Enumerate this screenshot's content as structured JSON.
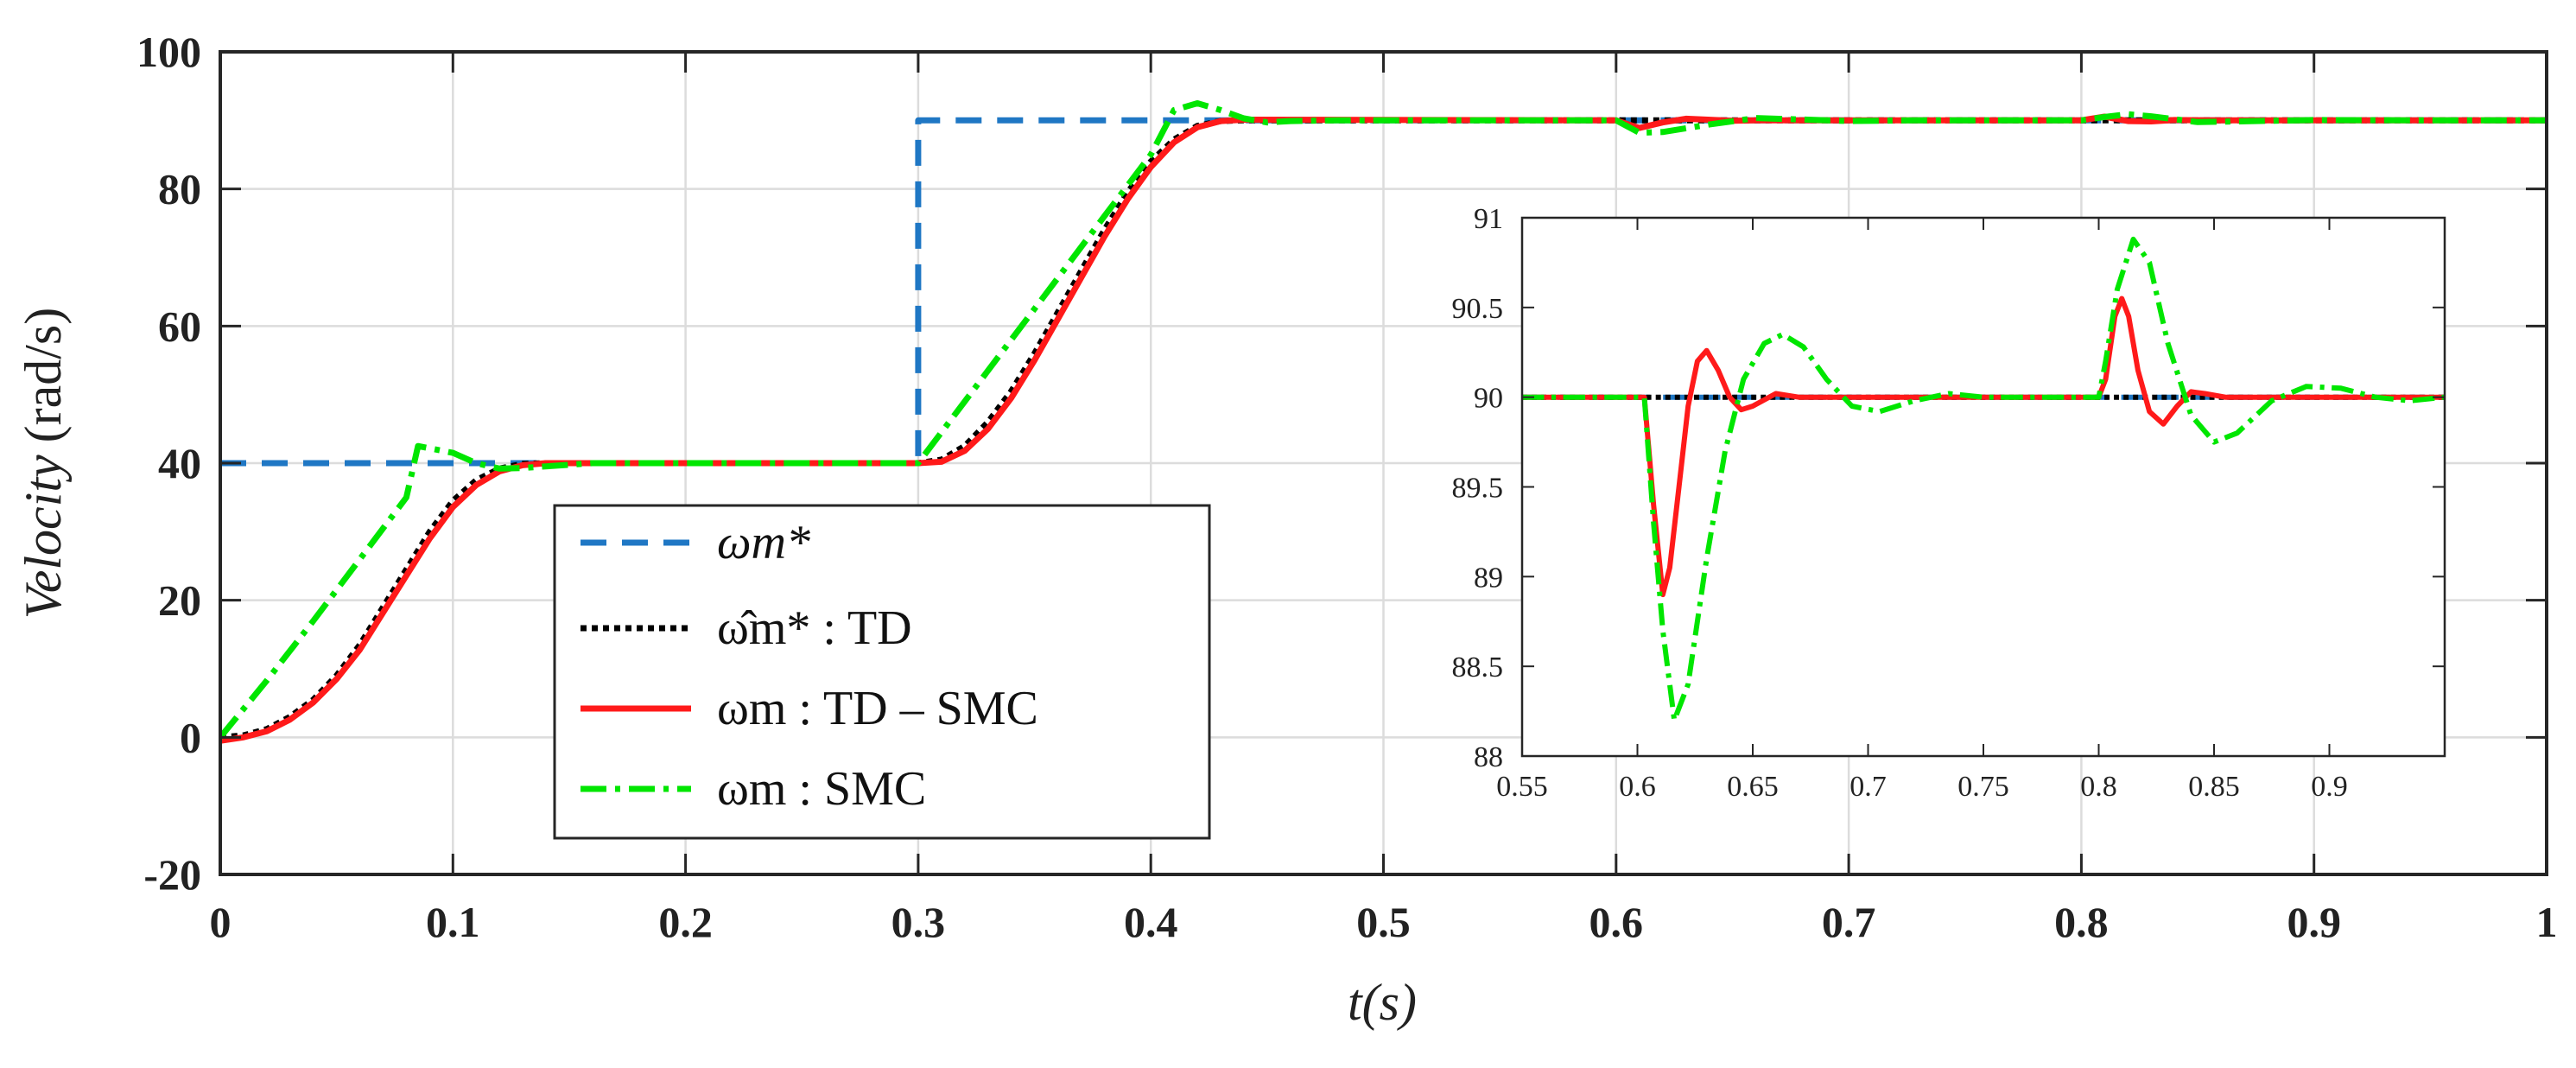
{
  "chart_data": [
    {
      "id": "main",
      "type": "line",
      "title": "",
      "xlabel": "t(s)",
      "ylabel": "Velocity (rad/s)",
      "ylabel_italic_part": "Velocity",
      "ylabel_unit_part": "(rad/s)",
      "xlim": [
        0,
        1
      ],
      "ylim": [
        -20,
        100
      ],
      "grid": true,
      "x_ticks": [
        0,
        0.1,
        0.2,
        0.3,
        0.4,
        0.5,
        0.6,
        0.7,
        0.8,
        0.9,
        1
      ],
      "x_tick_labels": [
        "0",
        "0.1",
        "0.2",
        "0.3",
        "0.4",
        "0.5",
        "0.6",
        "0.7",
        "0.8",
        "0.9",
        "1"
      ],
      "y_ticks": [
        -20,
        0,
        20,
        40,
        60,
        80,
        100
      ],
      "y_tick_labels": [
        "-20",
        "0",
        "20",
        "40",
        "60",
        "80",
        "100"
      ],
      "legend_position": "lower-center-left",
      "series": [
        {
          "name": "ω*m",
          "legend_text": "ωm*",
          "style": "dashed",
          "color": "#1f77c4",
          "points": [
            [
              0,
              40
            ],
            [
              0.3,
              40
            ],
            [
              0.3,
              90
            ],
            [
              1,
              90
            ]
          ]
        },
        {
          "name": "ω̂*m : TD",
          "legend_text": "ω̂m* : TD",
          "style": "dotted",
          "color": "#000000",
          "points": [
            [
              0,
              0
            ],
            [
              0.01,
              0.3
            ],
            [
              0.02,
              1.2
            ],
            [
              0.03,
              3
            ],
            [
              0.04,
              5.5
            ],
            [
              0.05,
              9
            ],
            [
              0.06,
              13.5
            ],
            [
              0.07,
              19
            ],
            [
              0.08,
              24.5
            ],
            [
              0.09,
              30
            ],
            [
              0.1,
              34.5
            ],
            [
              0.11,
              37.5
            ],
            [
              0.12,
              39.2
            ],
            [
              0.13,
              39.9
            ],
            [
              0.14,
              40
            ],
            [
              0.3,
              40
            ],
            [
              0.31,
              40.5
            ],
            [
              0.32,
              42.5
            ],
            [
              0.33,
              46
            ],
            [
              0.34,
              50.5
            ],
            [
              0.35,
              56
            ],
            [
              0.36,
              62
            ],
            [
              0.37,
              68
            ],
            [
              0.38,
              74
            ],
            [
              0.39,
              79.5
            ],
            [
              0.4,
              84
            ],
            [
              0.41,
              87.2
            ],
            [
              0.42,
              89.2
            ],
            [
              0.43,
              89.9
            ],
            [
              0.44,
              90
            ],
            [
              1,
              90
            ]
          ]
        },
        {
          "name": "ωm : TD - SMC",
          "legend_text": "ωm : TD – SMC",
          "style": "solid",
          "color": "#ff1a1a",
          "points": [
            [
              0,
              -0.5
            ],
            [
              0.01,
              0
            ],
            [
              0.02,
              0.9
            ],
            [
              0.03,
              2.6
            ],
            [
              0.04,
              5.1
            ],
            [
              0.05,
              8.5
            ],
            [
              0.06,
              12.8
            ],
            [
              0.07,
              18.2
            ],
            [
              0.08,
              23.6
            ],
            [
              0.09,
              29
            ],
            [
              0.1,
              33.6
            ],
            [
              0.11,
              36.8
            ],
            [
              0.12,
              38.8
            ],
            [
              0.13,
              39.7
            ],
            [
              0.14,
              40
            ],
            [
              0.3,
              40
            ],
            [
              0.31,
              40.2
            ],
            [
              0.32,
              41.8
            ],
            [
              0.33,
              45
            ],
            [
              0.34,
              49.5
            ],
            [
              0.35,
              55
            ],
            [
              0.36,
              61
            ],
            [
              0.37,
              67
            ],
            [
              0.38,
              73
            ],
            [
              0.39,
              78.5
            ],
            [
              0.4,
              83.2
            ],
            [
              0.41,
              86.8
            ],
            [
              0.42,
              89
            ],
            [
              0.43,
              89.9
            ],
            [
              0.44,
              90.1
            ],
            [
              0.6,
              90
            ],
            [
              0.61,
              88.9
            ],
            [
              0.62,
              89.7
            ],
            [
              0.63,
              90.25
            ],
            [
              0.65,
              89.95
            ],
            [
              0.66,
              90
            ],
            [
              0.8,
              90
            ],
            [
              0.81,
              90.55
            ],
            [
              0.82,
              89.9
            ],
            [
              0.83,
              89.85
            ],
            [
              0.84,
              90.05
            ],
            [
              0.86,
              90
            ],
            [
              1,
              90
            ]
          ]
        },
        {
          "name": "ωm : SMC",
          "legend_text": "ωm : SMC",
          "style": "dashdot",
          "color": "#00e600",
          "points": [
            [
              0,
              0
            ],
            [
              0.02,
              8.3
            ],
            [
              0.04,
              17
            ],
            [
              0.06,
              26
            ],
            [
              0.08,
              35
            ],
            [
              0.085,
              42.5
            ],
            [
              0.1,
              41.5
            ],
            [
              0.11,
              40
            ],
            [
              0.12,
              39.2
            ],
            [
              0.13,
              39.3
            ],
            [
              0.16,
              40
            ],
            [
              0.3,
              40
            ],
            [
              0.32,
              49
            ],
            [
              0.34,
              58
            ],
            [
              0.36,
              67
            ],
            [
              0.38,
              76
            ],
            [
              0.4,
              85
            ],
            [
              0.41,
              91.5
            ],
            [
              0.42,
              92.5
            ],
            [
              0.43,
              91.5
            ],
            [
              0.44,
              90.3
            ],
            [
              0.45,
              89.7
            ],
            [
              0.46,
              89.9
            ],
            [
              0.48,
              90
            ],
            [
              0.6,
              90
            ],
            [
              0.61,
              88.2
            ],
            [
              0.62,
              88.3
            ],
            [
              0.64,
              89.4
            ],
            [
              0.66,
              90.35
            ],
            [
              0.7,
              89.9
            ],
            [
              0.73,
              90.02
            ],
            [
              0.8,
              90
            ],
            [
              0.81,
              90.5
            ],
            [
              0.82,
              90.9
            ],
            [
              0.83,
              90.6
            ],
            [
              0.85,
              89.75
            ],
            [
              0.9,
              90.05
            ],
            [
              0.95,
              90
            ],
            [
              1,
              90
            ]
          ]
        }
      ]
    },
    {
      "id": "inset",
      "type": "line",
      "title": "",
      "xlabel": "",
      "ylabel": "",
      "xlim": [
        0.55,
        0.95
      ],
      "ylim": [
        88,
        91
      ],
      "grid": false,
      "x_ticks": [
        0.55,
        0.6,
        0.65,
        0.7,
        0.75,
        0.8,
        0.85,
        0.9
      ],
      "x_tick_labels": [
        "0.55",
        "0.6",
        "0.65",
        "0.7",
        "0.75",
        "0.8",
        "0.85",
        "0.9"
      ],
      "y_ticks": [
        88,
        88.5,
        89,
        89.5,
        90,
        90.5,
        91
      ],
      "y_tick_labels": [
        "88",
        "88.5",
        "89",
        "89.5",
        "90",
        "90.5",
        "91"
      ],
      "series": [
        {
          "name": "ω*m",
          "style": "dashed",
          "color": "#1f77c4",
          "points": [
            [
              0.55,
              90
            ],
            [
              0.95,
              90
            ]
          ]
        },
        {
          "name": "ω̂*m : TD",
          "style": "dotted",
          "color": "#000000",
          "points": [
            [
              0.55,
              90
            ],
            [
              0.95,
              90
            ]
          ]
        },
        {
          "name": "ωm : TD - SMC",
          "style": "solid",
          "color": "#ff1a1a",
          "points": [
            [
              0.55,
              90
            ],
            [
              0.6,
              90
            ],
            [
              0.603,
              90
            ],
            [
              0.607,
              89.4
            ],
            [
              0.611,
              88.9
            ],
            [
              0.614,
              89.05
            ],
            [
              0.618,
              89.5
            ],
            [
              0.622,
              89.95
            ],
            [
              0.626,
              90.2
            ],
            [
              0.63,
              90.26
            ],
            [
              0.635,
              90.15
            ],
            [
              0.64,
              90
            ],
            [
              0.645,
              89.93
            ],
            [
              0.65,
              89.95
            ],
            [
              0.66,
              90.02
            ],
            [
              0.67,
              90
            ],
            [
              0.8,
              90
            ],
            [
              0.803,
              90.1
            ],
            [
              0.807,
              90.45
            ],
            [
              0.81,
              90.55
            ],
            [
              0.813,
              90.45
            ],
            [
              0.817,
              90.15
            ],
            [
              0.822,
              89.92
            ],
            [
              0.828,
              89.85
            ],
            [
              0.834,
              89.95
            ],
            [
              0.84,
              90.03
            ],
            [
              0.846,
              90.02
            ],
            [
              0.855,
              90
            ],
            [
              0.95,
              90
            ]
          ]
        },
        {
          "name": "ωm : SMC",
          "style": "dashdot",
          "color": "#00e600",
          "points": [
            [
              0.55,
              90
            ],
            [
              0.6,
              90
            ],
            [
              0.603,
              90
            ],
            [
              0.607,
              89.3
            ],
            [
              0.611,
              88.7
            ],
            [
              0.616,
              88.2
            ],
            [
              0.622,
              88.4
            ],
            [
              0.63,
              89.1
            ],
            [
              0.638,
              89.7
            ],
            [
              0.646,
              90.1
            ],
            [
              0.655,
              90.3
            ],
            [
              0.663,
              90.35
            ],
            [
              0.672,
              90.28
            ],
            [
              0.682,
              90.1
            ],
            [
              0.693,
              89.95
            ],
            [
              0.705,
              89.92
            ],
            [
              0.72,
              89.98
            ],
            [
              0.735,
              90.02
            ],
            [
              0.75,
              90
            ],
            [
              0.8,
              90
            ],
            [
              0.803,
              90.2
            ],
            [
              0.808,
              90.6
            ],
            [
              0.815,
              90.88
            ],
            [
              0.822,
              90.75
            ],
            [
              0.83,
              90.3
            ],
            [
              0.84,
              89.9
            ],
            [
              0.85,
              89.75
            ],
            [
              0.86,
              89.8
            ],
            [
              0.875,
              89.98
            ],
            [
              0.89,
              90.06
            ],
            [
              0.905,
              90.05
            ],
            [
              0.92,
              90
            ],
            [
              0.935,
              89.98
            ],
            [
              0.95,
              90
            ]
          ]
        }
      ]
    }
  ]
}
